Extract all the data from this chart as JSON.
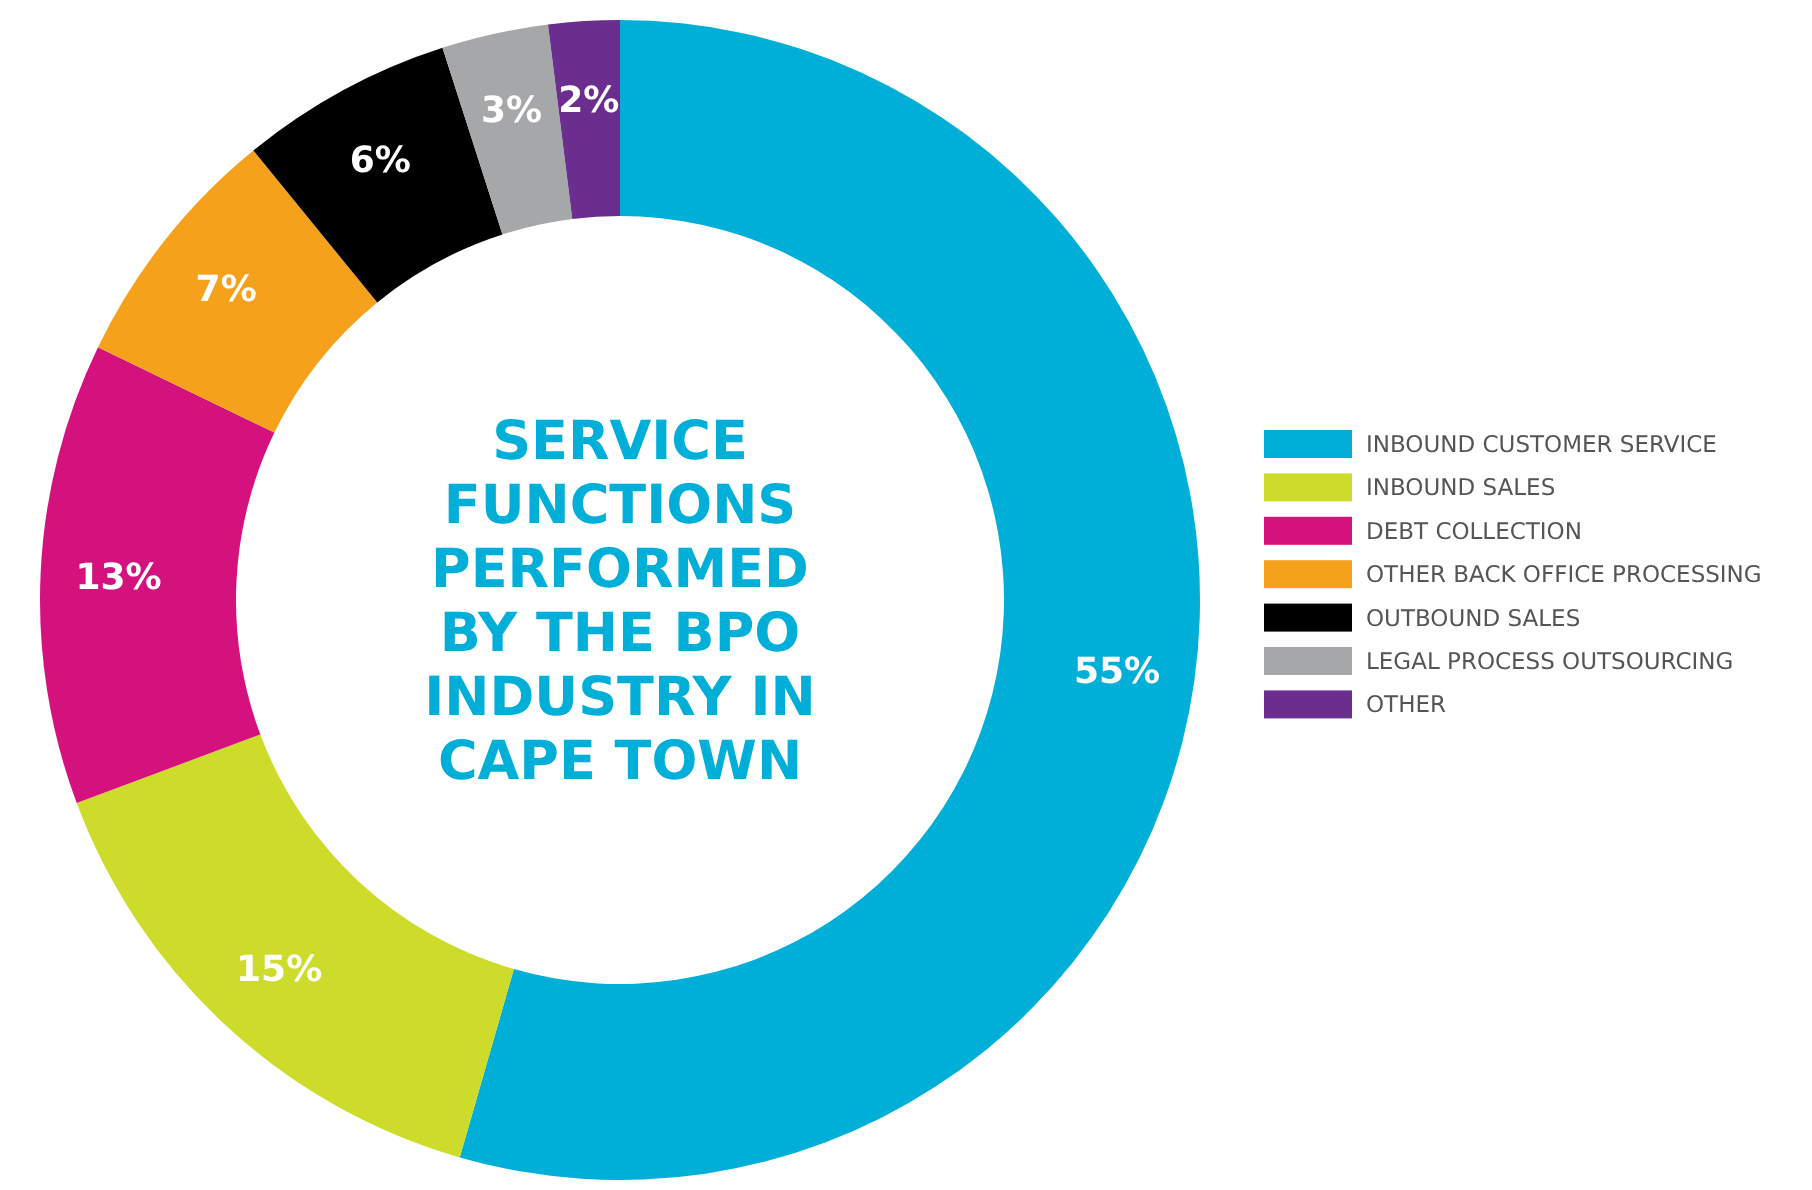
{
  "chart_data": {
    "type": "donut",
    "title": "SERVICE FUNCTIONS PERFORMED BY THE BPO INDUSTRY IN CAPE TOWN",
    "categories": [
      "INBOUND CUSTOMER SERVICE",
      "INBOUND SALES",
      "DEBT COLLECTION",
      "OTHER BACK OFFICE PROCESSING",
      "OUTBOUND SALES",
      "LEGAL PROCESS OUTSOURCING",
      "OTHER"
    ],
    "values": [
      55,
      15,
      13,
      7,
      6,
      3,
      2
    ],
    "value_labels": [
      "55%",
      "15%",
      "13%",
      "7%",
      "6%",
      "3%",
      "2%"
    ],
    "colors": [
      "#00afd7",
      "#cddb2b",
      "#d4127e",
      "#f6a11c",
      "#000000",
      "#a6a7a9",
      "#6c2e8e"
    ],
    "legend": "right"
  }
}
